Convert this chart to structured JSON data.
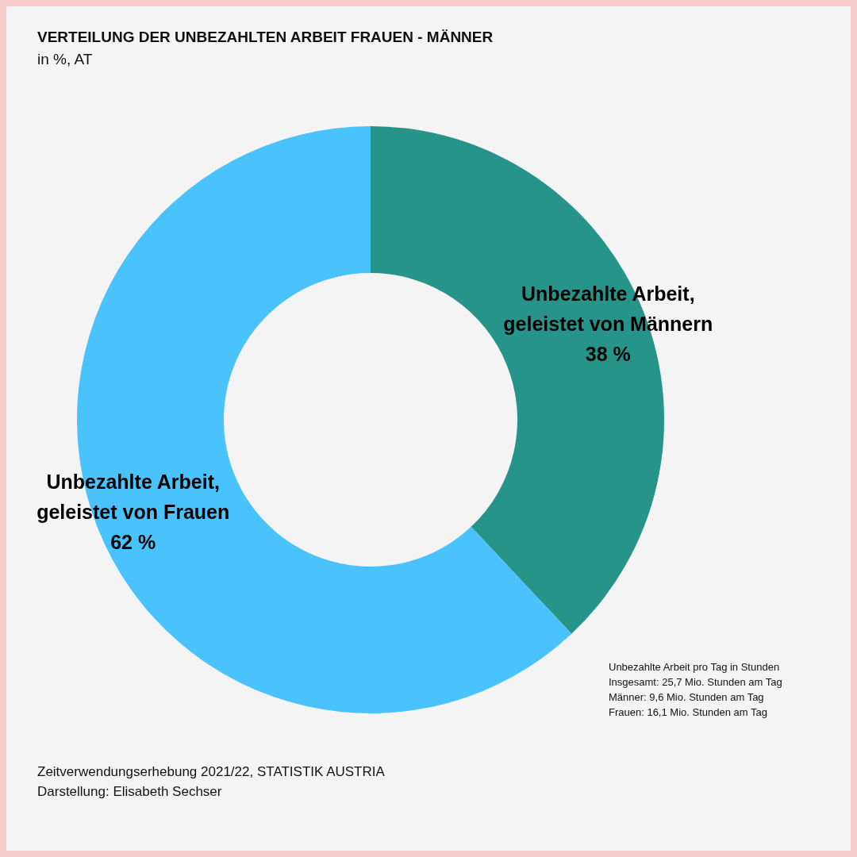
{
  "chart_data": {
    "type": "donut",
    "title": "VERTEILUNG DER UNBEZAHLTEN ARBEIT FRAUEN - MÄNNER",
    "subtitle": "in %, AT",
    "categories": [
      "Unbezahlte Arbeit, geleistet von Männern",
      "Unbezahlte Arbeit, geleistet von Frauen"
    ],
    "values": [
      38,
      62
    ],
    "colors": [
      "#27948a",
      "#4ac3fd"
    ],
    "value_labels": [
      "38 %",
      "62 %"
    ],
    "legend": false,
    "annotations": [
      "Unbezahlte Arbeit pro Tag in Stunden",
      "Insgesamt: 25,7 Mio. Stunden am Tag",
      "Männer: 9,6 Mio. Stunden am Tag",
      "Frauen: 16,1 Mio. Stunden am Tag",
      "Zeitverwendungserhebung 2021/22, STATISTIK AUSTRIA",
      "Darstellung: Elisabeth Sechser"
    ]
  }
}
